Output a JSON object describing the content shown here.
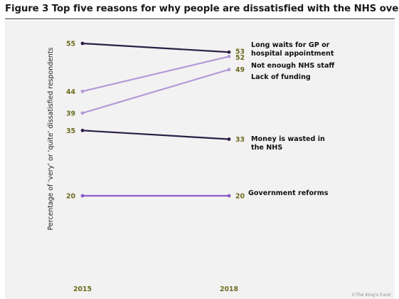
{
  "figure": {
    "title": "Figure 3 Top five reasons for why people are dissatisfied with the NHS overall",
    "source": "©The King's Fund"
  },
  "chart_data": {
    "type": "line",
    "title": "Figure 3 Top five reasons for why people are dissatisfied with the NHS overall",
    "xlabel": "",
    "ylabel": "Percentage of ‘very’ or ‘quite’ dissatisfied respondents",
    "x": [
      "2015",
      "2018"
    ],
    "ylim": [
      12,
      58
    ],
    "grid": false,
    "legend": "none (series labelled at line ends)",
    "series": [
      {
        "name": "Long waits for GP or hospital appointment",
        "label_lines": [
          "Long waits for GP or",
          "hospital appointment"
        ],
        "values": [
          55,
          53
        ],
        "color": "#2b1f47"
      },
      {
        "name": "Not enough NHS staff",
        "label_lines": [
          "Not enough NHS staff"
        ],
        "values": [
          44,
          52
        ],
        "color": "#b39ad9"
      },
      {
        "name": "Lack of funding",
        "label_lines": [
          "Lack of funding"
        ],
        "values": [
          39,
          49
        ],
        "color": "#b39ad9"
      },
      {
        "name": "Money is wasted in the NHS",
        "label_lines": [
          "Money is wasted in",
          "the NHS"
        ],
        "values": [
          35,
          33
        ],
        "color": "#2b1f47"
      },
      {
        "name": "Government reforms",
        "label_lines": [
          "Government reforms"
        ],
        "values": [
          20,
          20
        ],
        "color": "#8a5cc9"
      }
    ]
  }
}
